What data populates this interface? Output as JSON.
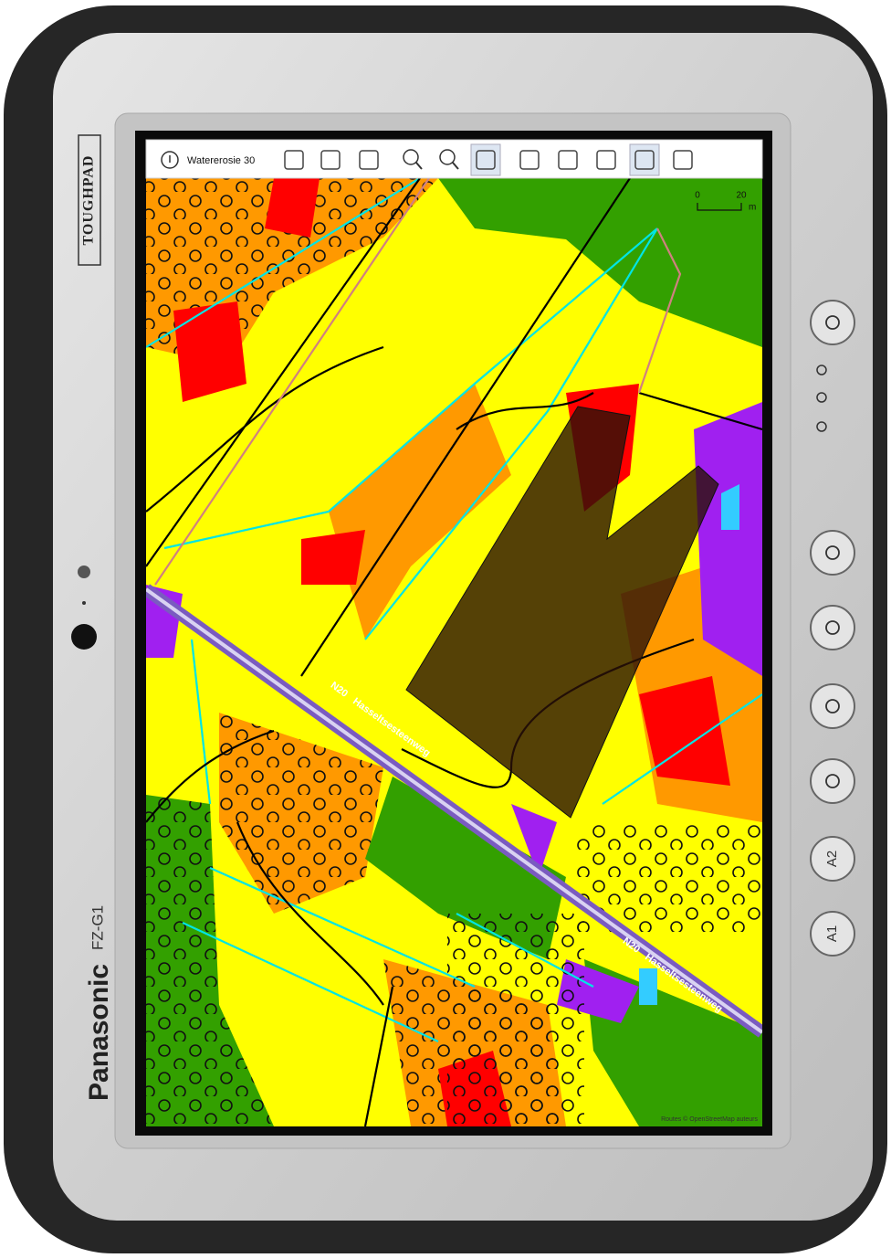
{
  "device": {
    "side_label": "TOUGHPAD",
    "brand": "Panasonic",
    "model": "FZ-G1",
    "buttons": [
      "A2",
      "A1"
    ]
  },
  "toolbar": {
    "layer": "Watererosie 30"
  },
  "map": {
    "scale": {
      "start": 0,
      "end": 20,
      "unit": "m"
    },
    "road_labels": [
      {
        "ref": "N20",
        "name": "Hasseltsesteenweg"
      },
      {
        "ref": "N20",
        "name": "Hasseltsesteenweg"
      }
    ],
    "attribution": "Routes © OpenStreetMap auteurs"
  }
}
